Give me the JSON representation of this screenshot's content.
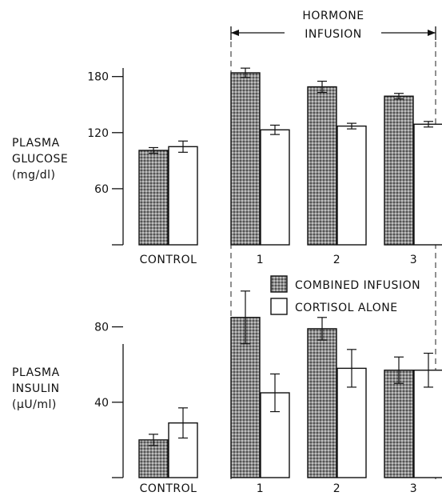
{
  "header": {
    "line1": "HORMONE",
    "line2": "INFUSION"
  },
  "legend": {
    "combined": "COMBINED INFUSION",
    "cortisol": "CORTISOL ALONE"
  },
  "chart_data": [
    {
      "type": "bar",
      "panel": "glucose",
      "ylabel": [
        "PLASMA",
        "GLUCOSE",
        "(mg/dl)"
      ],
      "categories": [
        "CONTROL",
        "1",
        "2",
        "3"
      ],
      "yticks": [
        60,
        120,
        180
      ],
      "ylim": [
        0,
        190
      ],
      "series": [
        {
          "name": "COMBINED INFUSION",
          "pattern": "stippled",
          "values": [
            101,
            184,
            169,
            159
          ],
          "errors": [
            3,
            5,
            6,
            3
          ]
        },
        {
          "name": "CORTISOL ALONE",
          "pattern": "open",
          "values": [
            105,
            123,
            127,
            129
          ],
          "errors": [
            6,
            5,
            3,
            3
          ]
        }
      ]
    },
    {
      "type": "bar",
      "panel": "insulin",
      "ylabel": [
        "PLASMA",
        "INSULIN",
        "(μU/ml)"
      ],
      "categories": [
        "CONTROL",
        "1",
        "2",
        "3"
      ],
      "yticks": [
        40,
        80
      ],
      "ylim": [
        0,
        90
      ],
      "series": [
        {
          "name": "COMBINED INFUSION",
          "pattern": "stippled",
          "values": [
            20,
            85,
            79,
            57
          ],
          "errors": [
            3,
            14,
            6,
            7
          ]
        },
        {
          "name": "CORTISOL ALONE",
          "pattern": "open",
          "values": [
            29,
            45,
            58,
            57
          ],
          "errors": [
            8,
            10,
            10,
            9
          ]
        }
      ]
    }
  ]
}
